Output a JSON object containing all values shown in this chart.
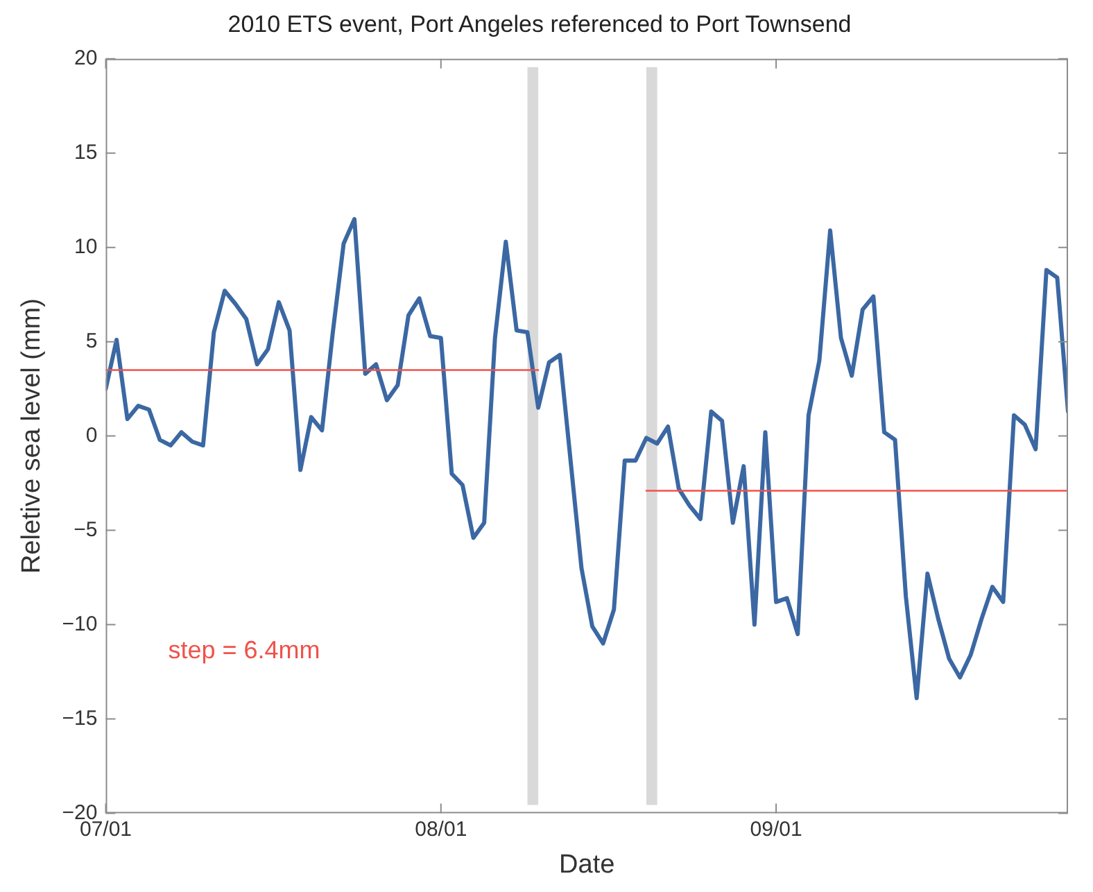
{
  "chart_data": {
    "type": "line",
    "title": "2010 ETS event, Port Angeles referenced to Port Townsend",
    "xlabel": "Date",
    "ylabel": "Reletive sea level (mm)",
    "xlim": [
      "--07-01",
      "--09-28"
    ],
    "xticks": [
      {
        "value": "--07-01",
        "label": "07/01"
      },
      {
        "value": "--08-01",
        "label": "08/01"
      },
      {
        "value": "--09-01",
        "label": "09/01"
      }
    ],
    "ylim": [
      -20,
      20
    ],
    "yticks": [
      -20,
      -15,
      -10,
      -5,
      0,
      5,
      10,
      15,
      20
    ],
    "grid": false,
    "legend": false,
    "marker": "none",
    "line_style": "solid",
    "series": [
      {
        "color": "#3b68a3",
        "x": [
          "--07-01",
          "--07-02",
          "--07-03",
          "--07-04",
          "--07-05",
          "--07-06",
          "--07-07",
          "--07-08",
          "--07-09",
          "--07-10",
          "--07-11",
          "--07-12",
          "--07-13",
          "--07-14",
          "--07-15",
          "--07-16",
          "--07-17",
          "--07-18",
          "--07-19",
          "--07-20",
          "--07-21",
          "--07-22",
          "--07-23",
          "--07-24",
          "--07-25",
          "--07-26",
          "--07-27",
          "--07-28",
          "--07-29",
          "--07-30",
          "--07-31",
          "--08-01",
          "--08-02",
          "--08-03",
          "--08-04",
          "--08-05",
          "--08-06",
          "--08-07",
          "--08-08",
          "--08-09",
          "--08-10",
          "--08-11",
          "--08-12",
          "--08-14",
          "--08-15",
          "--08-16",
          "--08-17",
          "--08-18",
          "--08-19",
          "--08-20",
          "--08-21",
          "--08-22",
          "--08-23",
          "--08-24",
          "--08-25",
          "--08-26",
          "--08-27",
          "--08-28",
          "--08-29",
          "--08-30",
          "--08-31",
          "--09-01",
          "--09-02",
          "--09-03",
          "--09-04",
          "--09-05",
          "--09-06",
          "--09-07",
          "--09-08",
          "--09-09",
          "--09-10",
          "--09-11",
          "--09-12",
          "--09-13",
          "--09-14",
          "--09-15",
          "--09-16",
          "--09-17",
          "--09-18",
          "--09-19",
          "--09-20",
          "--09-21",
          "--09-22",
          "--09-23",
          "--09-24",
          "--09-25",
          "--09-26",
          "--09-27",
          "--09-28"
        ],
        "values": [
          2.5,
          5.1,
          0.9,
          1.6,
          1.4,
          -0.2,
          -0.5,
          0.2,
          -0.3,
          -0.5,
          5.5,
          7.7,
          7.0,
          6.2,
          3.8,
          4.6,
          7.1,
          5.6,
          -1.8,
          1.0,
          0.3,
          5.5,
          10.2,
          11.5,
          3.3,
          3.8,
          1.9,
          2.7,
          6.4,
          7.3,
          5.3,
          5.2,
          -2.0,
          -2.6,
          -5.4,
          -4.6,
          5.2,
          10.3,
          5.6,
          5.5,
          1.5,
          3.9,
          4.3,
          -7.0,
          -10.1,
          -11.0,
          -9.2,
          -1.3,
          -1.3,
          -0.1,
          -0.4,
          0.5,
          -2.8,
          -3.7,
          -4.4,
          1.3,
          0.8,
          -4.6,
          -1.6,
          -10.0,
          0.2,
          -8.8,
          -8.6,
          -10.5,
          1.1,
          4.0,
          10.9,
          5.2,
          3.2,
          6.7,
          7.4,
          0.2,
          -0.2,
          -8.5,
          -13.9,
          -7.3,
          -9.7,
          -11.8,
          -12.8,
          -11.6,
          -9.7,
          -8.0,
          -8.8,
          1.1,
          0.6,
          -0.7,
          8.8,
          8.4,
          1.3
        ]
      },
      {
        "color": "#f0524a",
        "x": [
          "--07-01",
          "--08-10"
        ],
        "values": [
          3.5,
          3.5
        ]
      },
      {
        "color": "#f0524a",
        "x": [
          "--08-20",
          "--09-28"
        ],
        "values": [
          -2.9,
          -2.9
        ]
      }
    ],
    "bands": [
      {
        "axis": "x",
        "from": "--08-09",
        "to": "--08-10",
        "color": "#d9d9d9"
      },
      {
        "axis": "x",
        "from": "--08-20",
        "to": "--08-21",
        "color": "#d9d9d9"
      }
    ],
    "annotations": [
      "step = 6.4mm"
    ]
  }
}
